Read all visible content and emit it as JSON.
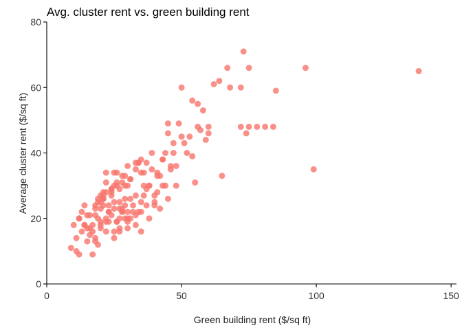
{
  "chart_data": {
    "type": "scatter",
    "title": "Avg. cluster rent vs. green building rent",
    "xlabel": "Green building rent ($/sq ft)",
    "ylabel": "Average cluster rent ($/sq ft)",
    "xlim": [
      0,
      152
    ],
    "ylim": [
      0,
      80
    ],
    "xticks": [
      "0",
      "50",
      "100",
      "150"
    ],
    "yticks": [
      "0",
      "20",
      "40",
      "60",
      "80"
    ],
    "grid": false,
    "point_color": "#f8766d",
    "x": [
      138,
      96,
      99,
      73,
      67,
      75,
      64,
      62,
      72,
      68,
      85,
      56,
      58,
      54,
      49,
      56,
      57,
      60,
      59,
      72,
      75,
      78,
      81,
      84,
      74,
      65,
      55,
      50,
      45,
      45,
      47,
      53,
      51,
      60,
      14,
      13,
      14,
      9,
      11,
      12,
      21,
      17,
      19,
      10,
      16,
      25,
      30,
      33,
      40,
      42,
      39,
      43,
      46,
      44,
      48,
      41,
      37,
      35,
      30,
      27,
      22,
      18,
      15,
      20,
      26,
      31,
      36,
      40,
      42,
      47,
      37,
      33,
      28,
      24,
      21,
      18,
      16,
      23,
      29,
      34,
      38,
      43,
      36,
      31,
      26,
      24,
      19,
      13,
      17,
      22,
      27,
      32,
      29,
      25,
      20,
      12,
      18,
      30,
      35,
      38,
      41,
      46,
      43,
      39,
      34,
      30,
      26,
      22,
      20,
      23,
      28,
      32,
      36,
      27,
      25,
      21,
      18,
      22,
      26,
      30,
      33,
      28,
      24,
      19,
      16,
      21,
      25,
      29,
      35,
      44,
      50,
      52,
      54,
      48,
      31,
      27,
      23,
      20,
      17,
      15,
      25,
      29,
      33,
      37,
      41,
      33,
      28,
      24,
      21,
      27,
      31,
      24,
      22,
      26,
      30,
      19,
      20,
      23,
      28,
      35,
      40,
      45,
      38,
      34,
      29,
      25,
      11,
      15,
      22,
      35,
      12,
      14,
      18,
      20,
      27
    ],
    "y": [
      65,
      66,
      35,
      71,
      66,
      66,
      62,
      61,
      60,
      60,
      59,
      55,
      53,
      56,
      49,
      48,
      47,
      48,
      44,
      48,
      48,
      48,
      48,
      48,
      46,
      33,
      31,
      60,
      49,
      46,
      43,
      45,
      43,
      46,
      24,
      22,
      18,
      11,
      10,
      9,
      24,
      9,
      12,
      18,
      15,
      14,
      19,
      21,
      25,
      33,
      35,
      38,
      36,
      30,
      30,
      28,
      24,
      22,
      20,
      17,
      16,
      14,
      13,
      17,
      19,
      26,
      30,
      27,
      23,
      40,
      37,
      35,
      33,
      27,
      26,
      23,
      21,
      22,
      24,
      22,
      20,
      30,
      34,
      32,
      30,
      28,
      26,
      16,
      18,
      19,
      20,
      22,
      26,
      25,
      23,
      20,
      21,
      17,
      16,
      30,
      34,
      35,
      38,
      40,
      37,
      36,
      31,
      28,
      25,
      24,
      22,
      24,
      27,
      29,
      30,
      27,
      24,
      20,
      19,
      22,
      18,
      23,
      21,
      20,
      17,
      28,
      34,
      30,
      38,
      40,
      45,
      40,
      39,
      36,
      32,
      25,
      22,
      18,
      16,
      21,
      16,
      20,
      27,
      29,
      33,
      37,
      31,
      29,
      26,
      23,
      20,
      29,
      31,
      34,
      30,
      25,
      27,
      19,
      22,
      25,
      24,
      26,
      30,
      37,
      33,
      23,
      14,
      17,
      34,
      34,
      20,
      18,
      13,
      19,
      16
    ]
  }
}
